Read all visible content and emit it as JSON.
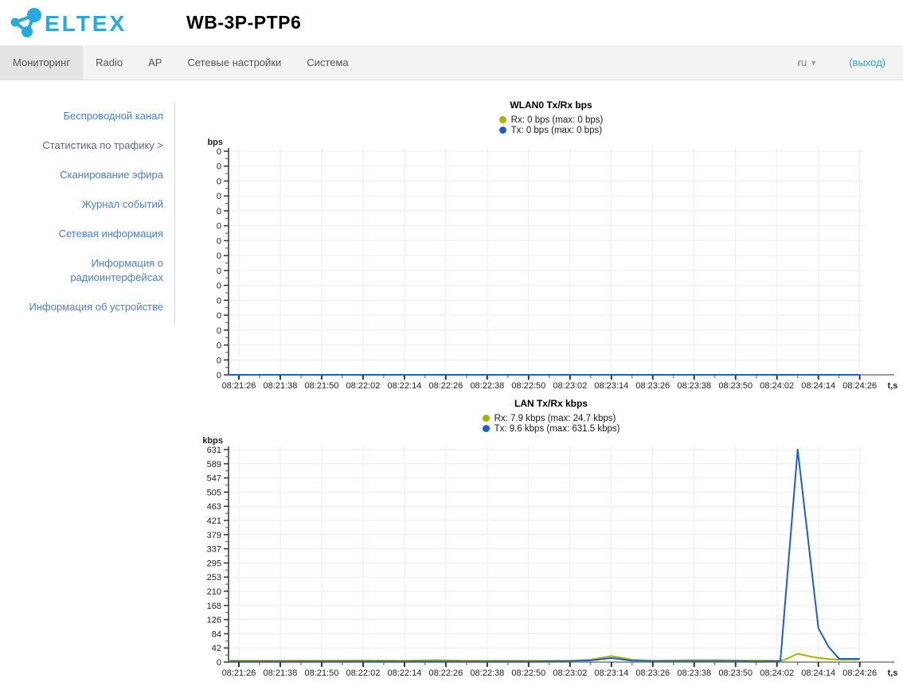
{
  "header": {
    "logo_text": "ELTEX",
    "title": "WB-3P-PTP6",
    "logo_color": "#29a8e0"
  },
  "nav": {
    "tabs": [
      {
        "label": "Мониторинг",
        "active": true
      },
      {
        "label": "Radio",
        "active": false
      },
      {
        "label": "AP",
        "active": false
      },
      {
        "label": "Сетевые настройки",
        "active": false
      },
      {
        "label": "Система",
        "active": false
      }
    ],
    "language": "ru",
    "logout": "(выход)"
  },
  "sidebar": {
    "items": [
      {
        "label": "Беспроводной канал",
        "active": false
      },
      {
        "label": "Статистика по трафику >",
        "active": true
      },
      {
        "label": "Сканирование эфира",
        "active": false
      },
      {
        "label": "Журнал событий",
        "active": false
      },
      {
        "label": "Сетевая информация",
        "active": false
      },
      {
        "label": "Информация о радиоинтерфейсах",
        "active": false
      },
      {
        "label": "Информация об устройстве",
        "active": false
      }
    ]
  },
  "colors": {
    "rx": "#a6b400",
    "tx": "#1f5fc4",
    "accent": "#29a8e0",
    "grid": "#ededed",
    "axis_x": "#9a9a9a",
    "axis_y": "#333333",
    "tick_text": "#222222"
  },
  "chart_data": [
    {
      "type": "line",
      "title": "WLAN0 Tx/Rx bps",
      "ylabel": "bps",
      "xlabel": "t,s",
      "y_tick_labels": [
        "0",
        "0",
        "0",
        "0",
        "0",
        "0",
        "0",
        "0",
        "0",
        "0",
        "0",
        "0",
        "0",
        "0",
        "0",
        "0"
      ],
      "y_scale_max": 1,
      "x_ticks": [
        {
          "t": 0,
          "label": "08:21:26"
        },
        {
          "t": 12,
          "label": "08:21:38"
        },
        {
          "t": 24,
          "label": "08:21:50"
        },
        {
          "t": 36,
          "label": "08:22:02"
        },
        {
          "t": 48,
          "label": "08:22:14"
        },
        {
          "t": 60,
          "label": "08:22:26"
        },
        {
          "t": 72,
          "label": "08:22:38"
        },
        {
          "t": 84,
          "label": "08:22:50"
        },
        {
          "t": 96,
          "label": "08:23:02"
        },
        {
          "t": 108,
          "label": "08:23:14"
        },
        {
          "t": 120,
          "label": "08:23:26"
        },
        {
          "t": 132,
          "label": "08:23:38"
        },
        {
          "t": 144,
          "label": "08:23:50"
        },
        {
          "t": 156,
          "label": "08:24:02"
        },
        {
          "t": 168,
          "label": "08:24:14"
        },
        {
          "t": 180,
          "label": "08:24:26"
        }
      ],
      "legend": [
        {
          "series": "Rx",
          "label": "Rx: 0 bps (max: 0 bps)",
          "color": "#a6b400"
        },
        {
          "series": "Tx",
          "label": "Tx: 0 bps (max: 0 bps)",
          "color": "#1f5fc4"
        }
      ],
      "series": [
        {
          "name": "Rx",
          "color": "#a6b400",
          "points": [
            [
              -3,
              0
            ],
            [
              180,
              0
            ]
          ]
        },
        {
          "name": "Tx",
          "color": "#1f5fc4",
          "points": [
            [
              -3,
              0
            ],
            [
              180,
              0
            ]
          ]
        }
      ]
    },
    {
      "type": "line",
      "title": "LAN Tx/Rx kbps",
      "ylabel": "kbps",
      "xlabel": "t,s",
      "y_tick_labels": [
        "631",
        "589",
        "547",
        "505",
        "463",
        "421",
        "379",
        "337",
        "295",
        "253",
        "210",
        "168",
        "126",
        "84",
        "42",
        "0"
      ],
      "y_scale_max": 631,
      "x_ticks": [
        {
          "t": 0,
          "label": "08:21:26"
        },
        {
          "t": 12,
          "label": "08:21:38"
        },
        {
          "t": 24,
          "label": "08:21:50"
        },
        {
          "t": 36,
          "label": "08:22:02"
        },
        {
          "t": 48,
          "label": "08:22:14"
        },
        {
          "t": 60,
          "label": "08:22:26"
        },
        {
          "t": 72,
          "label": "08:22:38"
        },
        {
          "t": 84,
          "label": "08:22:50"
        },
        {
          "t": 96,
          "label": "08:23:02"
        },
        {
          "t": 108,
          "label": "08:23:14"
        },
        {
          "t": 120,
          "label": "08:23:26"
        },
        {
          "t": 132,
          "label": "08:23:38"
        },
        {
          "t": 144,
          "label": "08:23:50"
        },
        {
          "t": 156,
          "label": "08:24:02"
        },
        {
          "t": 168,
          "label": "08:24:14"
        },
        {
          "t": 180,
          "label": "08:24:26"
        }
      ],
      "legend": [
        {
          "series": "Rx",
          "label": "Rx: 7.9 kbps (max: 24.7 kbps)",
          "color": "#a6b400"
        },
        {
          "series": "Tx",
          "label": "Tx: 9.6 kbps (max: 631.5 kbps)",
          "color": "#1f5fc4"
        }
      ],
      "series": [
        {
          "name": "Rx",
          "color": "#a6b400",
          "points": [
            [
              -3,
              4
            ],
            [
              0,
              4
            ],
            [
              12,
              4
            ],
            [
              24,
              4.5
            ],
            [
              36,
              5
            ],
            [
              48,
              4
            ],
            [
              57,
              6
            ],
            [
              66,
              4
            ],
            [
              78,
              4
            ],
            [
              90,
              4
            ],
            [
              96,
              4
            ],
            [
              102,
              7
            ],
            [
              108,
              18
            ],
            [
              114,
              7
            ],
            [
              120,
              4
            ],
            [
              126,
              5
            ],
            [
              132,
              6
            ],
            [
              138,
              6
            ],
            [
              144,
              5
            ],
            [
              150,
              5
            ],
            [
              156,
              4
            ],
            [
              158,
              6
            ],
            [
              162,
              24.7
            ],
            [
              167,
              14
            ],
            [
              171,
              9
            ],
            [
              175,
              7
            ],
            [
              180,
              7.9
            ]
          ]
        },
        {
          "name": "Tx",
          "color": "#1f5fc4",
          "points": [
            [
              -3,
              2
            ],
            [
              0,
              2
            ],
            [
              12,
              2
            ],
            [
              24,
              2
            ],
            [
              36,
              2
            ],
            [
              48,
              2
            ],
            [
              60,
              2
            ],
            [
              72,
              2
            ],
            [
              84,
              2
            ],
            [
              96,
              3
            ],
            [
              102,
              5
            ],
            [
              108,
              12
            ],
            [
              114,
              4
            ],
            [
              120,
              3
            ],
            [
              132,
              3
            ],
            [
              144,
              3
            ],
            [
              150,
              2
            ],
            [
              157,
              3
            ],
            [
              162,
              631.5
            ],
            [
              168,
              101
            ],
            [
              171,
              45
            ],
            [
              174,
              10
            ],
            [
              180,
              9.6
            ]
          ]
        }
      ]
    }
  ]
}
